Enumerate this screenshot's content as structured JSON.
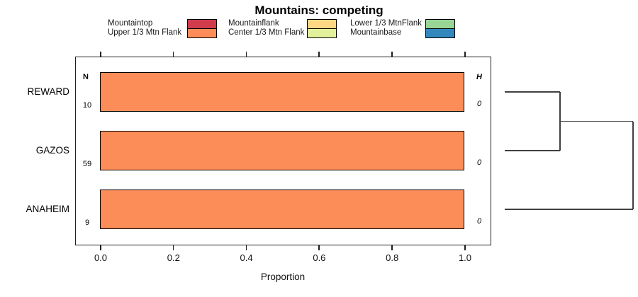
{
  "chart_data": {
    "type": "bar",
    "orientation": "horizontal",
    "title": "Mountains: competing",
    "xlabel": "Proportion",
    "xlim": [
      0,
      1
    ],
    "grid": false,
    "legend_position": "top",
    "categories": [
      "REWARD",
      "GAZOS",
      "ANAHEIM"
    ],
    "series": [
      {
        "name": "Upper 1/3 Mtn Flank",
        "color": "#fc8d59",
        "values": [
          1.0,
          1.0,
          1.0
        ]
      }
    ],
    "xticks": [
      "0.0",
      "0.2",
      "0.4",
      "0.6",
      "0.8",
      "1.0"
    ],
    "columns": {
      "n": {
        "header": "N",
        "values": [
          "10",
          "59",
          "9"
        ]
      },
      "h": {
        "header": "H",
        "values": [
          "0",
          "0",
          "0"
        ]
      }
    }
  },
  "legend": {
    "items": [
      {
        "label": "Mountaintop",
        "color": "#d13c4d"
      },
      {
        "label": "Upper 1/3 Mtn Flank",
        "color": "#fc8d59"
      },
      {
        "label": "Mountainflank",
        "color": "#fdd783"
      },
      {
        "label": "Center 1/3 Mtn Flank",
        "color": "#e2f09b"
      },
      {
        "label": "Lower 1/3 MtnFlank",
        "color": "#99d594"
      },
      {
        "label": "Mountainbase",
        "color": "#3288bd"
      }
    ]
  },
  "dendrogram": {
    "leaves": [
      "REWARD",
      "GAZOS",
      "ANAHEIM"
    ],
    "merges": [
      {
        "name": "cluster-1",
        "members": [
          "REWARD",
          "GAZOS"
        ],
        "height_rel": 0.43
      },
      {
        "name": "cluster-2",
        "members": [
          "cluster-1",
          "ANAHEIM"
        ],
        "height_rel": 1.0
      }
    ]
  }
}
